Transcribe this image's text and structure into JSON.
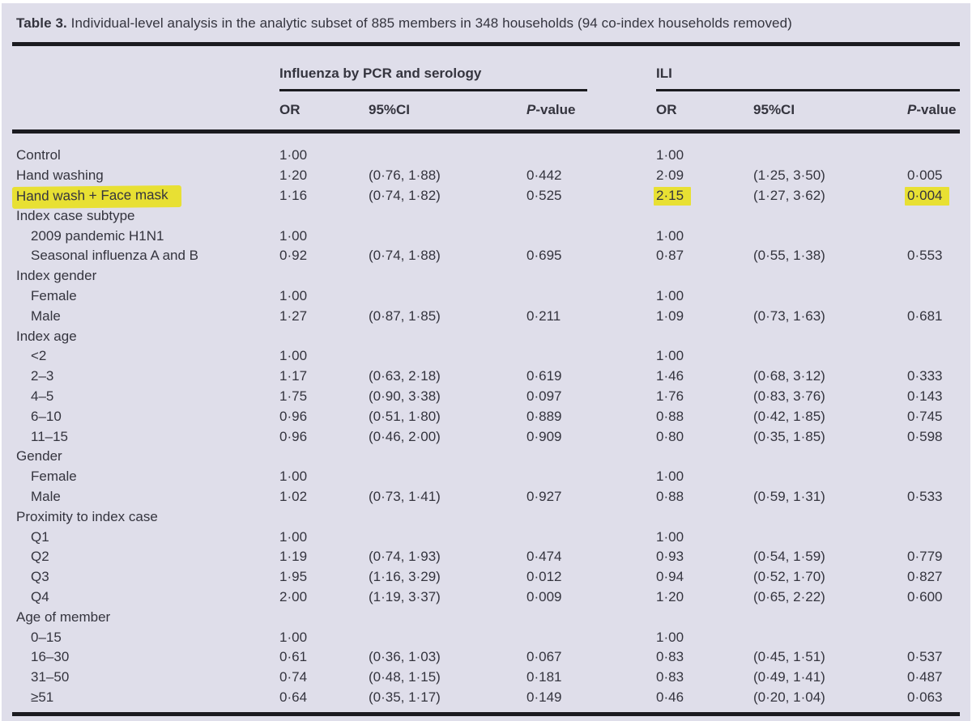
{
  "title": {
    "label": "Table 3.",
    "text": "Individual-level analysis in the analytic subset of 885 members in 348 households (94 co-index households removed)"
  },
  "highlight_color": "#e8e033",
  "colors": {
    "background": "#dfdeea",
    "text": "#34343e",
    "rule": "#1b1b20"
  },
  "table": {
    "group_pcr": "Influenza by PCR and serology",
    "group_ili": "ILI",
    "col_or": "OR",
    "col_ci": "95%CI",
    "col_p_italic": "P",
    "col_p_rest": "-value",
    "rows": [
      {
        "label": "Control",
        "indent": 0,
        "pcr": [
          "1·00",
          "",
          ""
        ],
        "ili": [
          "1·00",
          "",
          ""
        ]
      },
      {
        "label": "Hand washing",
        "indent": 0,
        "pcr": [
          "1·20",
          "(0·76, 1·88)",
          "0·442"
        ],
        "ili": [
          "2·09",
          "(1·25, 3·50)",
          "0·005"
        ]
      },
      {
        "label": "Hand wash + Face mask",
        "indent": 0,
        "pcr": [
          "1·16",
          "(0·74, 1·82)",
          "0·525"
        ],
        "ili": [
          "2·15",
          "(1·27, 3·62)",
          "0·004"
        ],
        "highlight": [
          "label",
          "or2",
          "p2"
        ]
      },
      {
        "label": "Index case subtype",
        "indent": 0,
        "section": true
      },
      {
        "label": "2009 pandemic H1N1",
        "indent": 1,
        "pcr": [
          "1·00",
          "",
          ""
        ],
        "ili": [
          "1·00",
          "",
          ""
        ]
      },
      {
        "label": "Seasonal influenza A and B",
        "indent": 1,
        "pcr": [
          "0·92",
          "(0·74, 1·88)",
          "0·695"
        ],
        "ili": [
          "0·87",
          "(0·55, 1·38)",
          "0·553"
        ]
      },
      {
        "label": "Index gender",
        "indent": 0,
        "section": true
      },
      {
        "label": "Female",
        "indent": 1,
        "pcr": [
          "1·00",
          "",
          ""
        ],
        "ili": [
          "1·00",
          "",
          ""
        ]
      },
      {
        "label": "Male",
        "indent": 1,
        "pcr": [
          "1·27",
          "(0·87, 1·85)",
          "0·211"
        ],
        "ili": [
          "1·09",
          "(0·73, 1·63)",
          "0·681"
        ]
      },
      {
        "label": "Index age",
        "indent": 0,
        "section": true
      },
      {
        "label": "<2",
        "indent": 1,
        "pcr": [
          "1·00",
          "",
          ""
        ],
        "ili": [
          "1·00",
          "",
          ""
        ]
      },
      {
        "label": "2–3",
        "indent": 1,
        "pcr": [
          "1·17",
          "(0·63, 2·18)",
          "0·619"
        ],
        "ili": [
          "1·46",
          "(0·68, 3·12)",
          "0·333"
        ]
      },
      {
        "label": "4–5",
        "indent": 1,
        "pcr": [
          "1·75",
          "(0·90, 3·38)",
          "0·097"
        ],
        "ili": [
          "1·76",
          "(0·83, 3·76)",
          "0·143"
        ]
      },
      {
        "label": "6–10",
        "indent": 1,
        "pcr": [
          "0·96",
          "(0·51, 1·80)",
          "0·889"
        ],
        "ili": [
          "0·88",
          "(0·42, 1·85)",
          "0·745"
        ]
      },
      {
        "label": "11–15",
        "indent": 1,
        "pcr": [
          "0·96",
          "(0·46, 2·00)",
          "0·909"
        ],
        "ili": [
          "0·80",
          "(0·35, 1·85)",
          "0·598"
        ]
      },
      {
        "label": "Gender",
        "indent": 0,
        "section": true
      },
      {
        "label": "Female",
        "indent": 1,
        "pcr": [
          "1·00",
          "",
          ""
        ],
        "ili": [
          "1·00",
          "",
          ""
        ]
      },
      {
        "label": "Male",
        "indent": 1,
        "pcr": [
          "1·02",
          "(0·73, 1·41)",
          "0·927"
        ],
        "ili": [
          "0·88",
          "(0·59, 1·31)",
          "0·533"
        ]
      },
      {
        "label": "Proximity to index case",
        "indent": 0,
        "section": true
      },
      {
        "label": "Q1",
        "indent": 1,
        "pcr": [
          "1·00",
          "",
          ""
        ],
        "ili": [
          "1·00",
          "",
          ""
        ]
      },
      {
        "label": "Q2",
        "indent": 1,
        "pcr": [
          "1·19",
          "(0·74, 1·93)",
          "0·474"
        ],
        "ili": [
          "0·93",
          "(0·54, 1·59)",
          "0·779"
        ]
      },
      {
        "label": "Q3",
        "indent": 1,
        "pcr": [
          "1·95",
          "(1·16, 3·29)",
          "0·012"
        ],
        "ili": [
          "0·94",
          "(0·52, 1·70)",
          "0·827"
        ]
      },
      {
        "label": "Q4",
        "indent": 1,
        "pcr": [
          "2·00",
          "(1·19, 3·37)",
          "0·009"
        ],
        "ili": [
          "1·20",
          "(0·65, 2·22)",
          "0·600"
        ]
      },
      {
        "label": "Age of member",
        "indent": 0,
        "section": true
      },
      {
        "label": "0–15",
        "indent": 1,
        "pcr": [
          "1·00",
          "",
          ""
        ],
        "ili": [
          "1·00",
          "",
          ""
        ]
      },
      {
        "label": "16–30",
        "indent": 1,
        "pcr": [
          "0·61",
          "(0·36, 1·03)",
          "0·067"
        ],
        "ili": [
          "0·83",
          "(0·45, 1·51)",
          "0·537"
        ]
      },
      {
        "label": "31–50",
        "indent": 1,
        "pcr": [
          "0·74",
          "(0·48, 1·15)",
          "0·181"
        ],
        "ili": [
          "0·83",
          "(0·49, 1·41)",
          "0·487"
        ]
      },
      {
        "label": "≥51",
        "indent": 1,
        "pcr": [
          "0·64",
          "(0·35, 1·17)",
          "0·149"
        ],
        "ili": [
          "0·46",
          "(0·20, 1·04)",
          "0·063"
        ]
      }
    ]
  }
}
